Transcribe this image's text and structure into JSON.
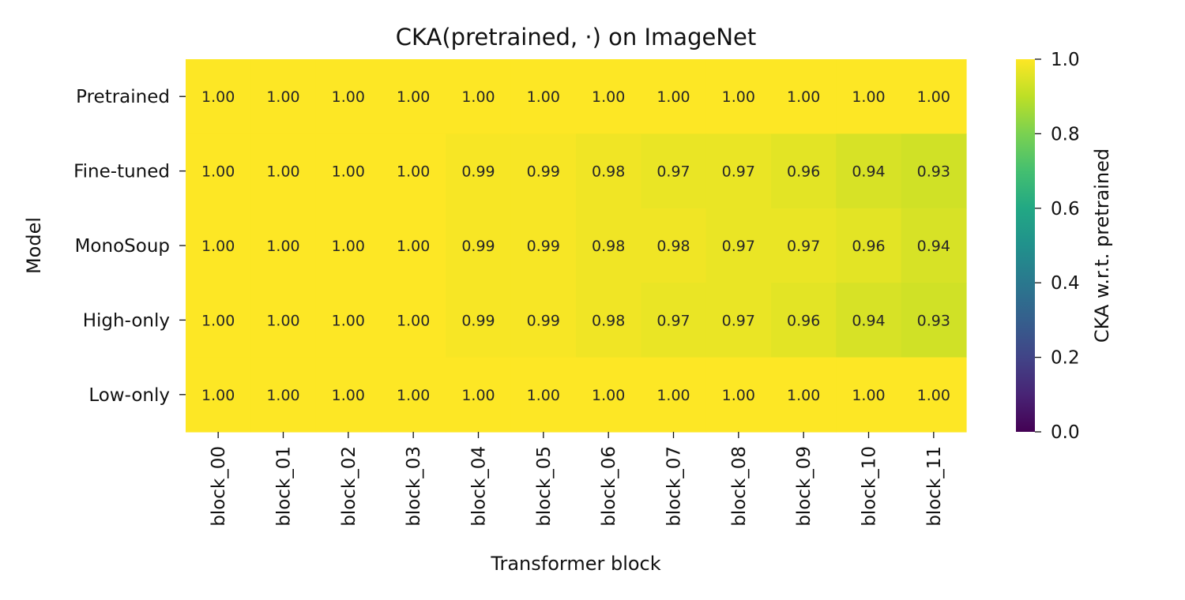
{
  "chart_data": {
    "type": "heatmap",
    "title": "CKA(pretrained, ·) on ImageNet",
    "xlabel": "Transformer block",
    "ylabel": "Model",
    "x": [
      "block_00",
      "block_01",
      "block_02",
      "block_03",
      "block_04",
      "block_05",
      "block_06",
      "block_07",
      "block_08",
      "block_09",
      "block_10",
      "block_11"
    ],
    "y": [
      "Pretrained",
      "Fine-tuned",
      "MonoSoup",
      "High-only",
      "Low-only"
    ],
    "values": [
      [
        1.0,
        1.0,
        1.0,
        1.0,
        1.0,
        1.0,
        1.0,
        1.0,
        1.0,
        1.0,
        1.0,
        1.0
      ],
      [
        1.0,
        1.0,
        1.0,
        1.0,
        0.99,
        0.99,
        0.98,
        0.97,
        0.97,
        0.96,
        0.94,
        0.93
      ],
      [
        1.0,
        1.0,
        1.0,
        1.0,
        0.99,
        0.99,
        0.98,
        0.98,
        0.97,
        0.97,
        0.96,
        0.94
      ],
      [
        1.0,
        1.0,
        1.0,
        1.0,
        0.99,
        0.99,
        0.98,
        0.97,
        0.97,
        0.96,
        0.94,
        0.93
      ],
      [
        1.0,
        1.0,
        1.0,
        1.0,
        1.0,
        1.0,
        1.0,
        1.0,
        1.0,
        1.0,
        1.0,
        1.0
      ]
    ],
    "colorbar": {
      "label": "CKA w.r.t. pretrained",
      "range": [
        0.0,
        1.0
      ],
      "ticks": [
        "0.0",
        "0.2",
        "0.4",
        "0.6",
        "0.8",
        "1.0"
      ],
      "colormap": "viridis"
    }
  }
}
